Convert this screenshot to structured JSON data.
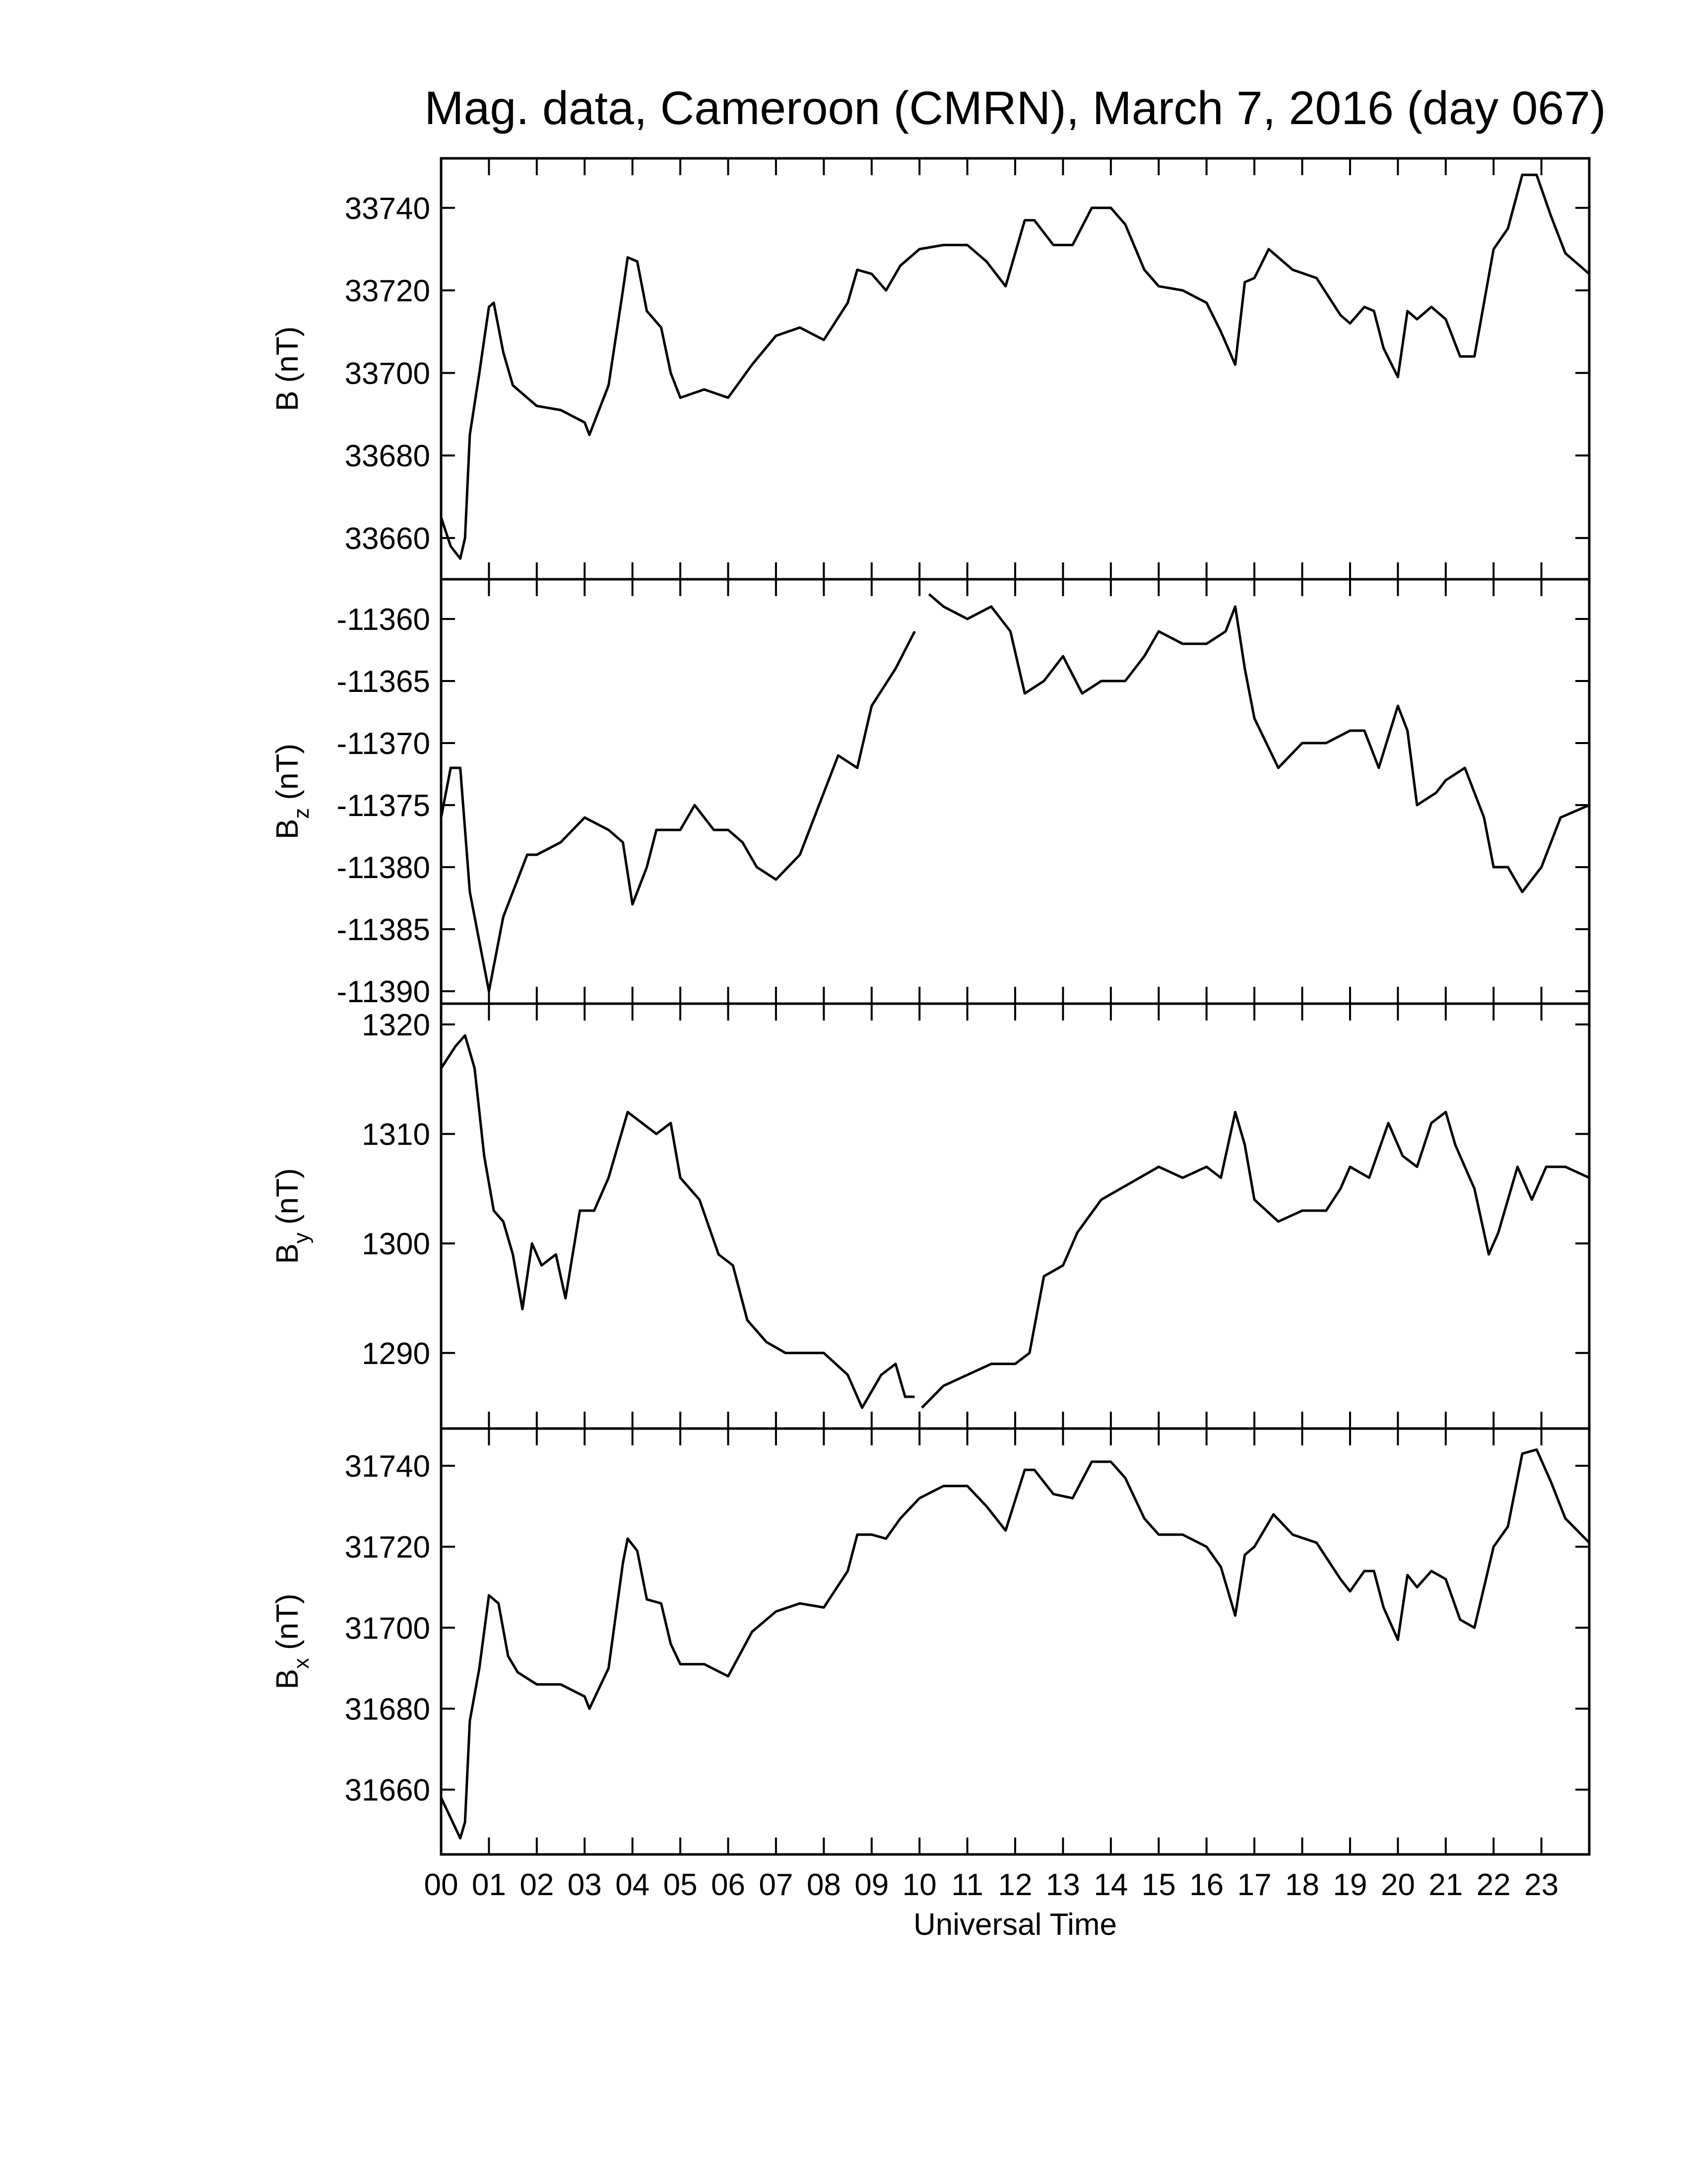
{
  "chart_data": [
    {
      "type": "line",
      "title": "Mag. data, Cameroon (CMRN), March 7, 2016 (day 067)",
      "ylabel": {
        "base": "B",
        "unit": "(nT)"
      },
      "color": "#000000",
      "xlim": [
        0,
        24
      ],
      "ylim": [
        33650,
        33752
      ],
      "yticks": [
        33660,
        33680,
        33700,
        33720,
        33740
      ],
      "x": [
        0,
        0.2,
        0.4,
        0.5,
        0.6,
        0.8,
        1.0,
        1.1,
        1.3,
        1.5,
        2,
        2.5,
        3,
        3.1,
        3.5,
        3.8,
        3.9,
        4.1,
        4.3,
        4.6,
        4.8,
        5,
        5.5,
        6,
        6.5,
        7,
        7.5,
        8,
        8.5,
        8.7,
        9,
        9.3,
        9.6,
        10,
        10.5,
        11,
        11.4,
        11.8,
        12.2,
        12.4,
        12.8,
        13.2,
        13.6,
        14,
        14.3,
        14.7,
        15,
        15.5,
        16,
        16.3,
        16.6,
        16.8,
        17,
        17.3,
        17.8,
        18.3,
        18.8,
        19,
        19.3,
        19.5,
        19.7,
        20,
        20.2,
        20.4,
        20.7,
        21,
        21.3,
        21.6,
        22,
        22.3,
        22.6,
        22.9,
        23.2,
        23.5,
        24
      ],
      "values": [
        33665,
        33658,
        33655,
        33660,
        33685,
        33700,
        33716,
        33717,
        33705,
        33697,
        33692,
        33691,
        33688,
        33685,
        33697,
        33720,
        33728,
        33727,
        33715,
        33711,
        33700,
        33694,
        33696,
        33694,
        33702,
        33709,
        33711,
        33708,
        33717,
        33725,
        33724,
        33720,
        33726,
        33730,
        33731,
        33731,
        33727,
        33721,
        33737,
        33737,
        33731,
        33731,
        33740,
        33740,
        33736,
        33725,
        33721,
        33720,
        33717,
        33710,
        33702,
        33722,
        33723,
        33730,
        33725,
        33723,
        33714,
        33712,
        33716,
        33715,
        33706,
        33699,
        33715,
        33713,
        33716,
        33713,
        33704,
        33704,
        33730,
        33735,
        33748,
        33748,
        33738,
        33729,
        33724
      ]
    },
    {
      "type": "line",
      "ylabel": {
        "base": "B",
        "sub": "z",
        "unit": "(nT)"
      },
      "color": "#000000",
      "xlim": [
        0,
        24
      ],
      "ylim": [
        -11391,
        -11356.8
      ],
      "yticks": [
        -11390,
        -11385,
        -11380,
        -11375,
        -11370,
        -11365,
        -11360
      ],
      "x": [
        0,
        0.2,
        0.4,
        0.6,
        0.8,
        1,
        1.3,
        1.5,
        1.8,
        2,
        2.5,
        3,
        3.5,
        3.8,
        4,
        4.3,
        4.5,
        5,
        5.3,
        5.7,
        6,
        6.3,
        6.6,
        7,
        7.5,
        8,
        8.3,
        8.7,
        9,
        9.5,
        9.9,
        10,
        10.2,
        10.5,
        11,
        11.5,
        11.9,
        12.2,
        12.6,
        13,
        13.4,
        13.8,
        14.3,
        14.7,
        15,
        15.5,
        16,
        16.4,
        16.6,
        16.8,
        17,
        17.5,
        18,
        18.5,
        19,
        19.3,
        19.6,
        20,
        20.2,
        20.4,
        20.8,
        21,
        21.4,
        21.8,
        22,
        22.3,
        22.6,
        23,
        23.4,
        24
      ],
      "values": [
        -11376,
        -11372,
        -11372,
        -11382,
        -11386,
        -11390,
        -11384,
        -11382,
        -11379,
        -11379,
        -11378,
        -11376,
        -11377,
        -11378,
        -11383,
        -11380,
        -11377,
        -11377,
        -11375,
        -11377,
        -11377,
        -11378,
        -11380,
        -11381,
        -11379,
        -11374,
        -11371,
        -11372,
        -11367,
        -11364,
        -11361,
        null,
        -11358,
        -11359,
        -11360,
        -11359,
        -11361,
        -11366,
        -11365,
        -11363,
        -11366,
        -11365,
        -11365,
        -11363,
        -11361,
        -11362,
        -11362,
        -11361,
        -11359,
        -11364,
        -11368,
        -11372,
        -11370,
        -11370,
        -11369,
        -11369,
        -11372,
        -11367,
        -11369,
        -11375,
        -11374,
        -11373,
        -11372,
        -11376,
        -11380,
        -11380,
        -11382,
        -11380,
        -11376,
        -11375
      ]
    },
    {
      "type": "line",
      "ylabel": {
        "base": "B",
        "sub": "y",
        "unit": "(nT)"
      },
      "color": "#000000",
      "xlim": [
        0,
        24
      ],
      "ylim": [
        1283.1,
        1321.9
      ],
      "yticks": [
        1290,
        1300,
        1310,
        1320
      ],
      "x": [
        0,
        0.3,
        0.5,
        0.7,
        0.9,
        1.1,
        1.3,
        1.5,
        1.7,
        1.9,
        2.1,
        2.4,
        2.6,
        2.9,
        3.2,
        3.5,
        3.9,
        4.2,
        4.5,
        4.8,
        5,
        5.4,
        5.8,
        6.1,
        6.4,
        6.8,
        7.2,
        7.6,
        8,
        8.5,
        8.8,
        9.2,
        9.5,
        9.7,
        9.9,
        10,
        10.05,
        10.5,
        11,
        11.5,
        12,
        12.3,
        12.6,
        13,
        13.3,
        13.8,
        14.2,
        14.6,
        15,
        15.5,
        16,
        16.3,
        16.6,
        16.8,
        17,
        17.5,
        18,
        18.5,
        18.8,
        19,
        19.4,
        19.8,
        20.1,
        20.4,
        20.7,
        21,
        21.2,
        21.6,
        21.9,
        22.1,
        22.5,
        22.8,
        23.1,
        23.5,
        24
      ],
      "values": [
        1316,
        1318,
        1319,
        1316,
        1308,
        1303,
        1302,
        1299,
        1294,
        1300,
        1298,
        1299,
        1295,
        1303,
        1303,
        1306,
        1312,
        1311,
        1310,
        1311,
        1306,
        1304,
        1299,
        1298,
        1293,
        1291,
        1290,
        1290,
        1290,
        1288,
        1285,
        1288,
        1289,
        1286,
        1286,
        null,
        1285,
        1287,
        1288,
        1289,
        1289,
        1290,
        1297,
        1298,
        1301,
        1304,
        1305,
        1306,
        1307,
        1306,
        1307,
        1306,
        1312,
        1309,
        1304,
        1302,
        1303,
        1303,
        1305,
        1307,
        1306,
        1311,
        1308,
        1307,
        1311,
        1312,
        1309,
        1305,
        1299,
        1301,
        1307,
        1304,
        1307,
        1307,
        1306
      ]
    },
    {
      "type": "line",
      "ylabel": {
        "base": "B",
        "sub": "x",
        "unit": "(nT)"
      },
      "color": "#000000",
      "xlabel": "Universal Time",
      "xlim": [
        0,
        24
      ],
      "ylim": [
        31644,
        31749.2
      ],
      "yticks": [
        31660,
        31680,
        31700,
        31720,
        31740
      ],
      "xticks": [
        {
          "value": 0,
          "label": "00"
        },
        {
          "value": 1,
          "label": "01"
        },
        {
          "value": 2,
          "label": "02"
        },
        {
          "value": 3,
          "label": "03"
        },
        {
          "value": 4,
          "label": "04"
        },
        {
          "value": 5,
          "label": "05"
        },
        {
          "value": 6,
          "label": "06"
        },
        {
          "value": 7,
          "label": "07"
        },
        {
          "value": 8,
          "label": "08"
        },
        {
          "value": 9,
          "label": "09"
        },
        {
          "value": 10,
          "label": "10"
        },
        {
          "value": 11,
          "label": "11"
        },
        {
          "value": 12,
          "label": "12"
        },
        {
          "value": 13,
          "label": "13"
        },
        {
          "value": 14,
          "label": "14"
        },
        {
          "value": 15,
          "label": "15"
        },
        {
          "value": 16,
          "label": "16"
        },
        {
          "value": 17,
          "label": "17"
        },
        {
          "value": 18,
          "label": "18"
        },
        {
          "value": 19,
          "label": "19"
        },
        {
          "value": 20,
          "label": "20"
        },
        {
          "value": 21,
          "label": "21"
        },
        {
          "value": 22,
          "label": "22"
        },
        {
          "value": 23,
          "label": "23"
        }
      ],
      "x": [
        0,
        0.2,
        0.4,
        0.5,
        0.6,
        0.8,
        1.0,
        1.2,
        1.4,
        1.6,
        2,
        2.5,
        3,
        3.1,
        3.5,
        3.8,
        3.9,
        4.1,
        4.3,
        4.6,
        4.8,
        5,
        5.5,
        6,
        6.5,
        7,
        7.5,
        8,
        8.5,
        8.7,
        9,
        9.3,
        9.6,
        10,
        10.5,
        11,
        11.4,
        11.8,
        12.2,
        12.4,
        12.8,
        13.2,
        13.6,
        14,
        14.3,
        14.7,
        15,
        15.5,
        16,
        16.3,
        16.6,
        16.8,
        17,
        17.4,
        17.8,
        18.3,
        18.8,
        19,
        19.3,
        19.5,
        19.7,
        20,
        20.2,
        20.4,
        20.7,
        21,
        21.3,
        21.6,
        22,
        22.3,
        22.6,
        22.9,
        23.2,
        23.5,
        24
      ],
      "values": [
        31658,
        31653,
        31648,
        31652,
        31677,
        31690,
        31708,
        31706,
        31693,
        31689,
        31686,
        31686,
        31683,
        31680,
        31690,
        31716,
        31722,
        31719,
        31707,
        31706,
        31696,
        31691,
        31691,
        31688,
        31699,
        31704,
        31706,
        31705,
        31714,
        31723,
        31723,
        31722,
        31727,
        31732,
        31735,
        31735,
        31730,
        31724,
        31739,
        31739,
        31733,
        31732,
        31741,
        31741,
        31737,
        31727,
        31723,
        31723,
        31720,
        31715,
        31703,
        31718,
        31720,
        31728,
        31723,
        31721,
        31712,
        31709,
        31714,
        31714,
        31705,
        31697,
        31713,
        31710,
        31714,
        31712,
        31702,
        31700,
        31720,
        31725,
        31743,
        31744,
        31736,
        31727,
        31721
      ]
    }
  ]
}
